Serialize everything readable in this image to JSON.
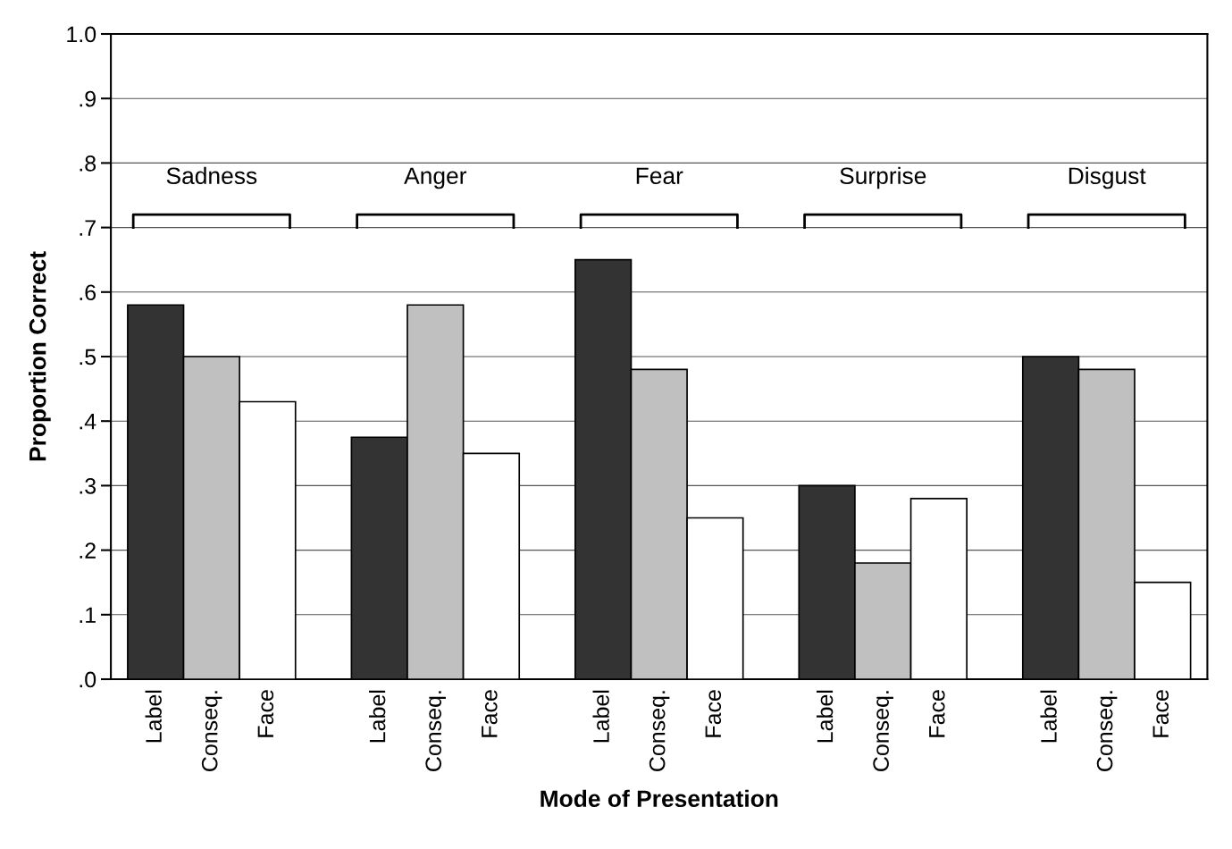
{
  "chart_data": {
    "type": "bar",
    "xlabel": "Mode of Presentation",
    "ylabel": "Proportion Correct",
    "categories": [
      "Label",
      "Conseq.",
      "Face",
      null,
      "Label",
      "Conseq.",
      "Face",
      null,
      "Label",
      "Conseq.",
      "Face",
      null,
      "Label",
      "Conseq.",
      "Face",
      null,
      "Label",
      "Conseq.",
      "Face"
    ],
    "values": [
      0.58,
      0.5,
      0.43,
      null,
      0.375,
      0.58,
      0.35,
      null,
      0.65,
      0.48,
      0.25,
      null,
      0.3,
      0.18,
      0.28,
      null,
      0.5,
      0.48,
      0.15
    ],
    "colors": [
      "#333333",
      "#c0c0c0",
      "#ffffff",
      null,
      "#333333",
      "#c0c0c0",
      "#ffffff",
      null,
      "#333333",
      "#c0c0c0",
      "#ffffff",
      null,
      "#333333",
      "#c0c0c0",
      "#ffffff",
      null,
      "#333333",
      "#c0c0c0",
      "#ffffff"
    ],
    "annotations": [
      "Sadness",
      "Anger",
      "Fear",
      "Surprise",
      "Disgust"
    ],
    "ylim": [
      0,
      1
    ],
    "yticks": [
      {
        "value": 0,
        "label": ".0"
      },
      {
        "value": 0.1,
        "label": ".1"
      },
      {
        "value": 0.2,
        "label": ".2"
      },
      {
        "value": 0.3,
        "label": ".3"
      },
      {
        "value": 0.4,
        "label": ".4"
      },
      {
        "value": 0.5,
        "label": ".5"
      },
      {
        "value": 0.6,
        "label": ".6"
      },
      {
        "value": 0.7,
        "label": ".7"
      },
      {
        "value": 0.8,
        "label": ".8"
      },
      {
        "value": 0.9,
        "label": ".9"
      },
      {
        "value": 1.0,
        "label": "1.0"
      }
    ],
    "grid": "y",
    "legend": false
  }
}
